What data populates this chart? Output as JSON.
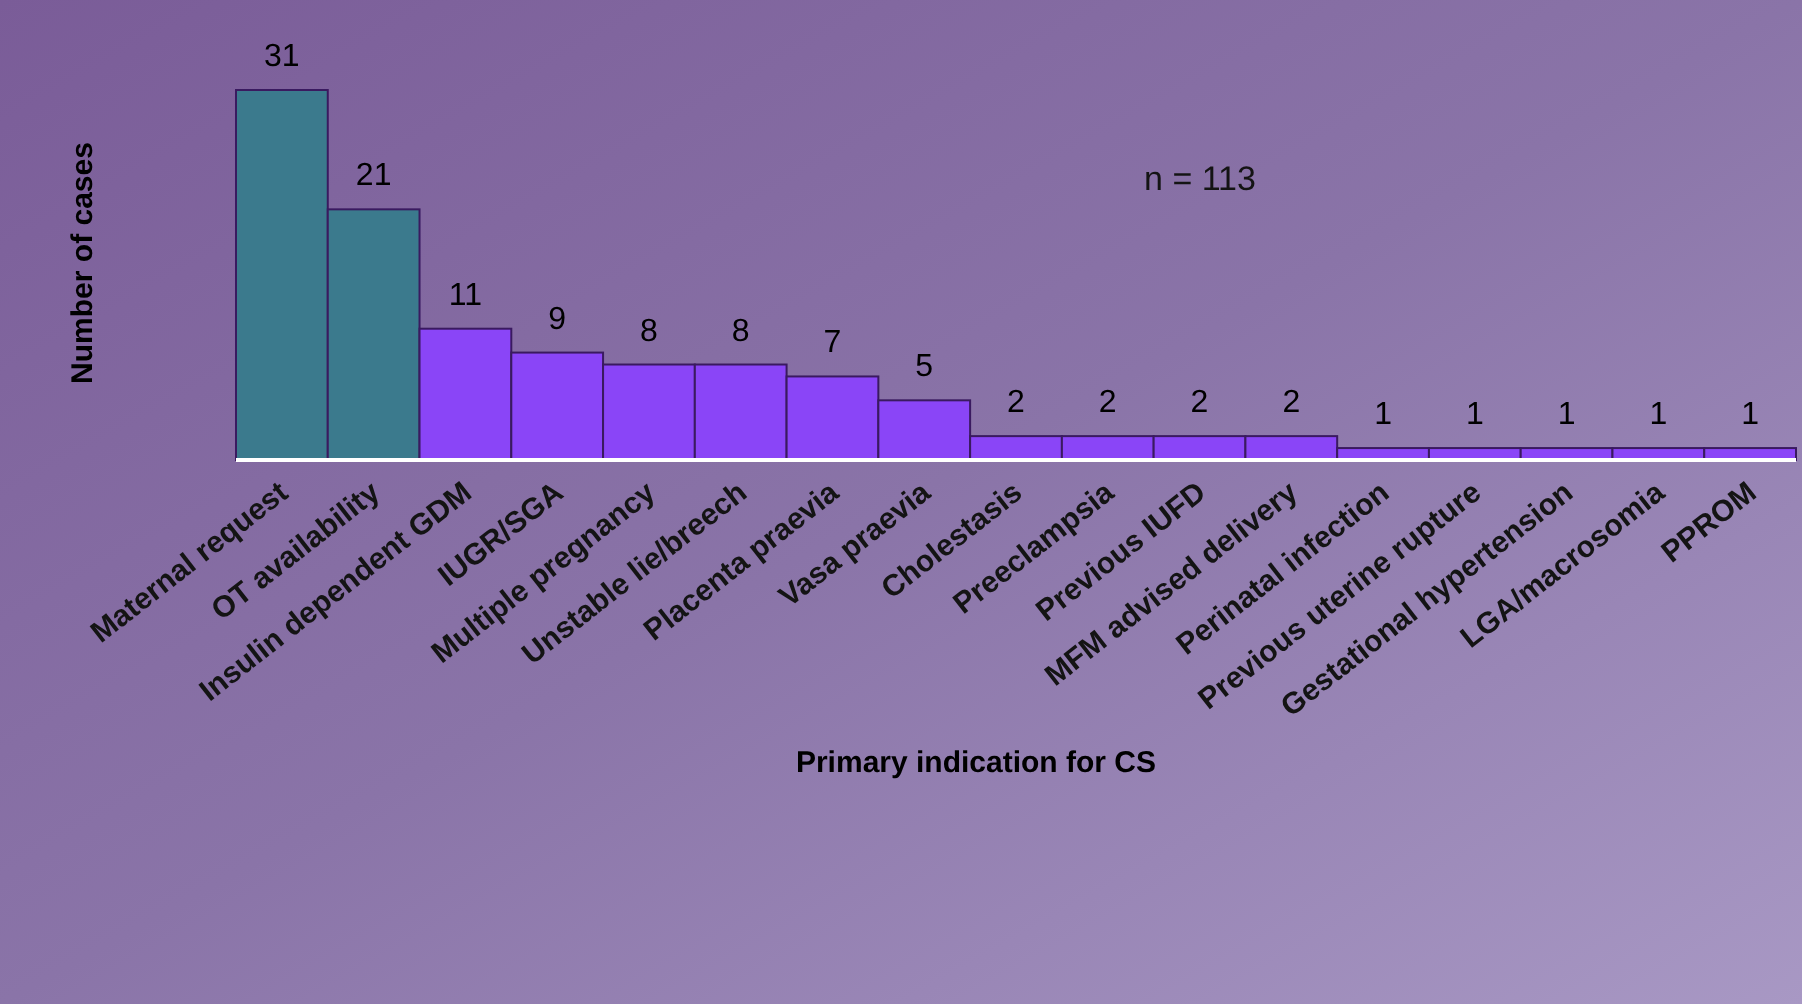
{
  "chart_data": {
    "type": "bar",
    "xlabel": "Primary indication for CS",
    "ylabel": "Number of cases",
    "annotations": [
      "n = 113"
    ],
    "data_labels": true,
    "categories": [
      "Maternal request",
      "OT availability",
      "Insulin dependent GDM",
      "IUGR/SGA",
      "Multiple pregnancy",
      "Unstable lie/breech",
      "Placenta praevia",
      "Vasa praevia",
      "Cholestasis",
      "Preeclampsia",
      "Previous IUFD",
      "MFM advised delivery",
      "Perinatal infection",
      "Previous uterine rupture",
      "Gestational hypertension",
      "LGA/macrosomia",
      "PPROM"
    ],
    "values": [
      31,
      21,
      11,
      9,
      8,
      8,
      7,
      5,
      2,
      2,
      2,
      2,
      1,
      1,
      1,
      1,
      1
    ],
    "colors": [
      "#3b7a8d",
      "#3b7a8d",
      "#8a45f7",
      "#8a45f7",
      "#8a45f7",
      "#8a45f7",
      "#8a45f7",
      "#8a45f7",
      "#8a45f7",
      "#8a45f7",
      "#8a45f7",
      "#8a45f7",
      "#8a45f7",
      "#8a45f7",
      "#8a45f7",
      "#8a45f7",
      "#8a45f7"
    ]
  }
}
